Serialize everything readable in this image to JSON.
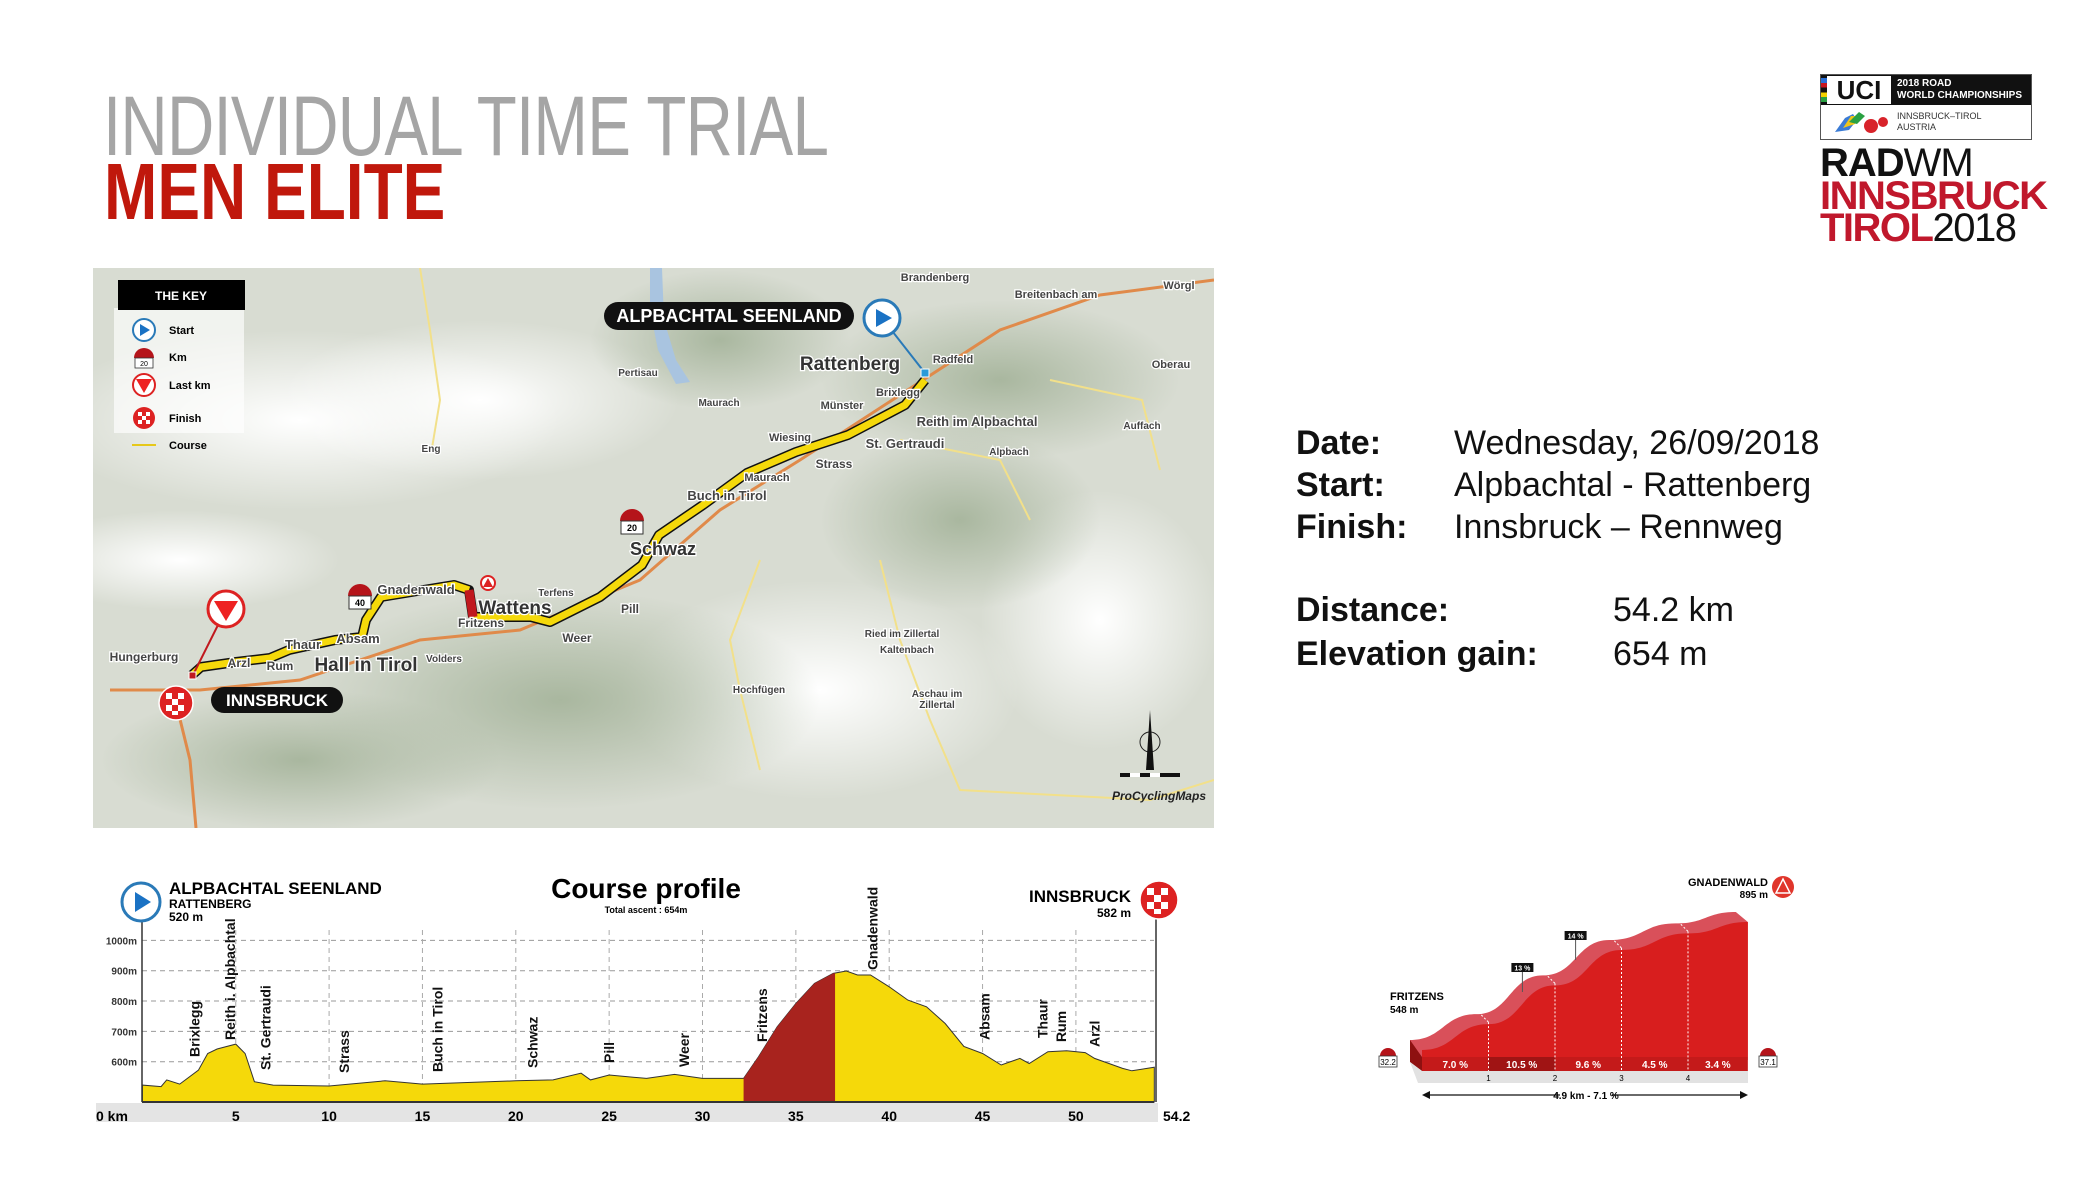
{
  "header": {
    "title": "INDIVIDUAL TIME TRIAL",
    "subtitle": "MEN ELITE",
    "title_color": "#a5a5a5",
    "subtitle_color": "#c0180c"
  },
  "logo": {
    "uci": "UCI",
    "event_line1": "2018 ROAD",
    "event_line2": "WORLD CHAMPIONSHIPS",
    "city_line1": "INNSBRUCK–TIROL",
    "city_line2": "AUSTRIA",
    "radwm_bold": "RAD",
    "radwm_thin": "WM",
    "innsbruck": "INNSBRUCK",
    "tirol": "TIROL",
    "year": "2018"
  },
  "info": {
    "date_label": "Date:",
    "date_value": "Wednesday, 26/09/2018",
    "start_label": "Start:",
    "start_value": "Alpbachtal - Rattenberg",
    "finish_label": "Finish:",
    "finish_value": "Innsbruck – Rennweg",
    "distance_label": "Distance:",
    "distance_value": "54.2 km",
    "elevation_label": "Elevation gain:",
    "elevation_value": "654 m"
  },
  "map": {
    "key_title": "THE KEY",
    "key_items": [
      "Start",
      "Km",
      "Last km",
      "Finish",
      "Course"
    ],
    "key_km_sample": "20",
    "start_banner": "ALPBACHTAL SEENLAND",
    "finish_banner": "INNSBRUCK",
    "km_markers": [
      "20",
      "40"
    ],
    "places": {
      "brandenberg": "Brandenberg",
      "breitenbach": "Breitenbach am",
      "worgl": "Wörgl",
      "rattenberg": "Rattenberg",
      "radfeld": "Radfeld",
      "oberau": "Oberau",
      "pertisau": "Pertisau",
      "maurach": "Maurach",
      "munster": "Münster",
      "brixlegg": "Brixlegg",
      "reith": "Reith im Alpbachtal",
      "auffach": "Auffach",
      "wiesing": "Wiesing",
      "gertraudi": "St. Gertraudi",
      "alpbach": "Alpbach",
      "strass": "Strass",
      "maurach2": "Maurach",
      "buch": "Buch in Tirol",
      "eng": "Eng",
      "schwaz": "Schwaz",
      "gnadenwald": "Gnadenwald",
      "wattens": "Wattens",
      "fritzens": "Fritzens",
      "terfens": "Terfens",
      "pill": "Pill",
      "weer": "Weer",
      "absam": "Absam",
      "thaur": "Thaur",
      "hall": "Hall in Tirol",
      "volders": "Volders",
      "hungerburg": "Hungerburg",
      "arzl": "Arzl",
      "rum": "Rum",
      "ried": "Ried im Zillertal",
      "kaltenbach": "Kaltenbach",
      "hochfugen": "Hochfügen",
      "aschau1": "Aschau im",
      "aschau2": "Zillertal"
    },
    "credit": "ProCyclingMaps",
    "colors": {
      "course": "#f5d90a",
      "lake": "#a9c4e0",
      "terrain": "#d8dcd2"
    }
  },
  "chart_data": [
    {
      "type": "area",
      "title": "Course profile",
      "subtitle": "Total ascent : 654m",
      "start": {
        "name": "ALPBACHTAL SEENLAND",
        "sub": "RATTENBERG",
        "elevation": "520 m"
      },
      "finish": {
        "name": "INNSBRUCK",
        "elevation": "582 m"
      },
      "x_unit_label": "0 km",
      "x_ticks": [
        5,
        10,
        15,
        20,
        25,
        30,
        35,
        40,
        45,
        50
      ],
      "x_end_label": "54.2",
      "xlim": [
        0,
        54.2
      ],
      "y_ticks": [
        {
          "value": 600,
          "label": "600m"
        },
        {
          "value": 700,
          "label": "700m"
        },
        {
          "value": 800,
          "label": "800m"
        },
        {
          "value": 900,
          "label": "900m"
        },
        {
          "value": 1000,
          "label": "1000m"
        }
      ],
      "ylim": [
        475,
        1000
      ],
      "grid": true,
      "colors": {
        "fill": "#f5d90a",
        "climb": "#a8231e"
      },
      "climb_range_km": [
        32.2,
        37.1
      ],
      "series": {
        "x": [
          0,
          1,
          1.3,
          2,
          3,
          3.5,
          4,
          5,
          5.5,
          6,
          7,
          10,
          13,
          15,
          20,
          22,
          23.5,
          24,
          25,
          27,
          28.5,
          30,
          32.2,
          33,
          34,
          35,
          36,
          37,
          37.7,
          38.3,
          39,
          40,
          41,
          42,
          43,
          44,
          45,
          46,
          47,
          47.5,
          48.5,
          49.5,
          50.5,
          51,
          52.5,
          53,
          54.2
        ],
        "y": [
          523,
          518,
          540,
          526,
          572,
          627,
          642,
          658,
          627,
          534,
          523,
          520,
          537,
          526,
          537,
          540,
          562,
          540,
          556,
          545,
          558,
          545,
          545,
          616,
          715,
          792,
          858,
          891,
          899,
          886,
          886,
          847,
          803,
          781,
          726,
          650,
          627,
          589,
          611,
          594,
          633,
          636,
          630,
          611,
          578,
          570,
          582
        ]
      },
      "places": [
        {
          "name": "Brixlegg",
          "km": 2.8
        },
        {
          "name": "Reith i. Alpbachtal",
          "km": 4.7
        },
        {
          "name": "St. Gertraudi",
          "km": 6.6
        },
        {
          "name": "Strass",
          "km": 10.8
        },
        {
          "name": "Buch in Tirol",
          "km": 15.8
        },
        {
          "name": "Schwaz",
          "km": 20.9
        },
        {
          "name": "Pill",
          "km": 25
        },
        {
          "name": "Weer",
          "km": 29
        },
        {
          "name": "Fritzens",
          "km": 33.2
        },
        {
          "name": "Gnadenwald",
          "km": 39.1
        },
        {
          "name": "Absam",
          "km": 45.1
        },
        {
          "name": "Thaur",
          "km": 48.2
        },
        {
          "name": "Rum",
          "km": 49.2
        },
        {
          "name": "Arzl",
          "km": 51
        }
      ]
    },
    {
      "type": "area",
      "start": {
        "name": "FRITZENS",
        "elevation": "548 m",
        "km_stone": "32.2"
      },
      "finish": {
        "name": "GNADENWALD",
        "elevation": "895 m",
        "km_stone": "37.1"
      },
      "x_ticks": [
        "1",
        "2",
        "3",
        "4"
      ],
      "xlim": [
        0,
        4.9
      ],
      "series": {
        "x": [
          0,
          1,
          2,
          3,
          4,
          4.9
        ],
        "y": [
          548,
          618,
          723,
          819,
          864,
          895
        ]
      },
      "segment_gradients": [
        "7.0 %",
        "10.5 %",
        "9.6 %",
        "4.5 %",
        "3.4 %"
      ],
      "max_gradients": [
        {
          "label": "13 %",
          "km": 1.6
        },
        {
          "label": "14 %",
          "km": 2.4
        }
      ],
      "summary": "4.9 km - 7.1 %",
      "colors": {
        "fill": "#d81e1e",
        "band": "#d9505a",
        "bar": "#c41a1a",
        "bar_dark": "#a01414"
      }
    }
  ]
}
